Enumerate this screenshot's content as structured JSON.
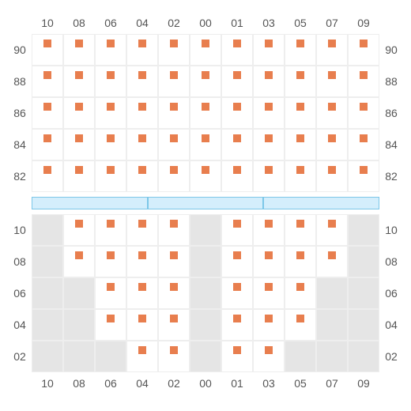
{
  "columns": [
    "10",
    "08",
    "06",
    "04",
    "02",
    "00",
    "01",
    "03",
    "05",
    "07",
    "09"
  ],
  "upper": {
    "rows": [
      "90",
      "88",
      "86",
      "84",
      "82"
    ],
    "grid": [
      [
        1,
        1,
        1,
        1,
        1,
        1,
        1,
        1,
        1,
        1,
        1
      ],
      [
        1,
        1,
        1,
        1,
        1,
        1,
        1,
        1,
        1,
        1,
        1
      ],
      [
        1,
        1,
        1,
        1,
        1,
        1,
        1,
        1,
        1,
        1,
        1
      ],
      [
        1,
        1,
        1,
        1,
        1,
        1,
        1,
        1,
        1,
        1,
        1
      ],
      [
        1,
        1,
        1,
        1,
        1,
        1,
        1,
        1,
        1,
        1,
        1
      ]
    ]
  },
  "stage_segments": 3,
  "lower": {
    "rows": [
      "10",
      "08",
      "06",
      "04",
      "02"
    ],
    "grid": [
      [
        0,
        1,
        1,
        1,
        1,
        0,
        1,
        1,
        1,
        1,
        0
      ],
      [
        0,
        1,
        1,
        1,
        1,
        0,
        1,
        1,
        1,
        1,
        0
      ],
      [
        0,
        0,
        1,
        1,
        1,
        0,
        1,
        1,
        1,
        0,
        0
      ],
      [
        0,
        0,
        1,
        1,
        1,
        0,
        1,
        1,
        1,
        0,
        0
      ],
      [
        0,
        0,
        0,
        1,
        1,
        0,
        1,
        1,
        0,
        0,
        0
      ]
    ]
  },
  "colors": {
    "seat": "#e87e4e",
    "unavailable": "#e5e5e5",
    "border": "#eeeeee",
    "stage_fill": "#d4eefc",
    "stage_border": "#7cc7e8",
    "text": "#555555"
  }
}
